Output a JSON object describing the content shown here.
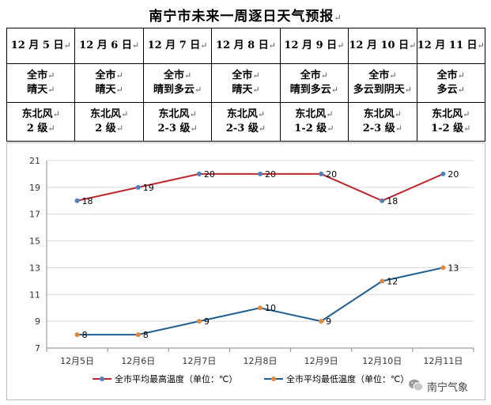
{
  "title": "南宁市未来一周逐日天气预报",
  "return_mark": "↵",
  "table": {
    "days": [
      {
        "date": "12 月 5 日",
        "weather_1": "全市",
        "weather_2": "晴天",
        "wind_1": "东北风",
        "wind_2": "2 级"
      },
      {
        "date": "12 月 6 日",
        "weather_1": "全市",
        "weather_2": "晴天",
        "wind_1": "东北风",
        "wind_2": "2 级"
      },
      {
        "date": "12 月 7 日",
        "weather_1": "全市",
        "weather_2": "晴到多云",
        "wind_1": "东北风",
        "wind_2": "2-3 级"
      },
      {
        "date": "12 月 8 日",
        "weather_1": "全市",
        "weather_2": "晴天",
        "wind_1": "东北风",
        "wind_2": "2-3 级"
      },
      {
        "date": "12 月 9 日",
        "weather_1": "全市",
        "weather_2": "晴到多云",
        "wind_1": "东北风",
        "wind_2": "1-2 级"
      },
      {
        "date": "12 月 10 日",
        "weather_1": "全市",
        "weather_2": "多云到阴天",
        "wind_1": "东北风",
        "wind_2": "2-3 级"
      },
      {
        "date": "12 月 11 日",
        "weather_1": "全市",
        "weather_2": "多云",
        "wind_1": "东北风",
        "wind_2": "1-2 级"
      }
    ]
  },
  "chart_data": {
    "type": "line",
    "categories": [
      "12月5日",
      "12月6日",
      "12月7日",
      "12月8日",
      "12月9日",
      "12月10日",
      "12月11日"
    ],
    "series": [
      {
        "name": "全市平均最高温度（单位：℃）",
        "values": [
          18,
          19,
          20,
          20,
          20,
          18,
          20
        ],
        "color": "#c0272d",
        "marker": "#4f81bd"
      },
      {
        "name": "全市平均最低温度（单位：℃）",
        "values": [
          8,
          8,
          9,
          10,
          9,
          12,
          13
        ],
        "color": "#1f5f94",
        "marker": "#e8873a"
      }
    ],
    "ylim": [
      7,
      21
    ],
    "yticks": [
      7,
      9,
      11,
      13,
      15,
      17,
      19,
      21
    ],
    "grid": true,
    "legend": "bottom"
  },
  "watermark": {
    "text": "南宁气象",
    "icon": "wechat-icon"
  }
}
